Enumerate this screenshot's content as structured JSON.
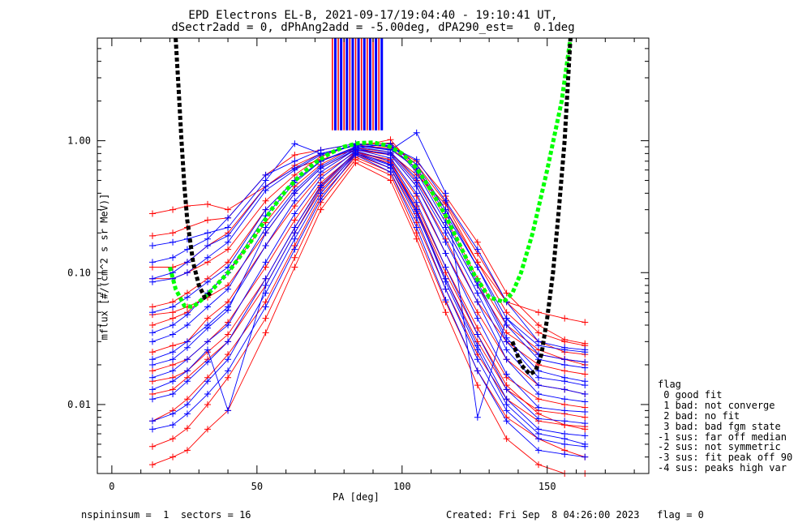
{
  "title": {
    "line1": "EPD Electrons EL-B, 2021-09-17/19:04:40 - 19:10:41 UT,",
    "line2": "dSectr2add = 0, dPhAng2add = -5.00deg, dPA290_est=   0.1deg"
  },
  "footer": {
    "left": "nspininsum =  1  sectors = 16",
    "right": "Created: Fri Sep  8 04:26:00 2023   flag = 0"
  },
  "legend": {
    "title": "flag",
    "items": [
      " 0 good fit",
      " 1 bad: not converge",
      " 2 bad: no fit",
      " 3 bad: bad fgm state",
      "-1 sus: far off median",
      "-2 sus: not symmetric",
      "-3 sus: fit peak off 90",
      "-4 sus: peaks high var"
    ]
  },
  "chart_data": {
    "type": "line",
    "xlabel": "PA [deg]",
    "ylabel": "mflux [#/(cm^2 s sr MeV)]",
    "xlim": [
      -5,
      185
    ],
    "ylim": [
      0.003,
      6.0
    ],
    "yscale": "log",
    "xticks": [
      0,
      50,
      100,
      150
    ],
    "xtick_labels": [
      "0",
      "50",
      "100",
      "150"
    ],
    "yticks": [
      0.01,
      0.1,
      1.0
    ],
    "ytick_labels": [
      "0.01",
      "0.10",
      "1.00"
    ],
    "colors": {
      "red_series": "#ff0000",
      "blue_series": "#0000ff",
      "fit_green": "#00ff00",
      "fit_black": "#000000"
    },
    "sectors_pa": [
      14,
      21,
      26,
      33,
      40,
      53,
      63,
      72,
      84,
      96,
      105,
      115,
      126,
      136,
      147,
      156,
      163
    ],
    "red_lines": [
      [
        0.28,
        0.3,
        0.32,
        0.33,
        0.3,
        0.45,
        0.62,
        0.72,
        0.85,
        0.8,
        0.55,
        0.33,
        0.12,
        0.06,
        0.05,
        0.045,
        0.042
      ],
      [
        0.19,
        0.2,
        0.22,
        0.25,
        0.26,
        0.55,
        0.78,
        0.85,
        0.95,
        0.9,
        0.7,
        0.38,
        0.17,
        0.07,
        0.04,
        0.031,
        0.029
      ],
      [
        0.11,
        0.11,
        0.12,
        0.16,
        0.2,
        0.45,
        0.65,
        0.8,
        0.92,
        0.88,
        0.62,
        0.3,
        0.12,
        0.05,
        0.03,
        0.025,
        0.024
      ],
      [
        0.055,
        0.06,
        0.07,
        0.09,
        0.12,
        0.3,
        0.5,
        0.7,
        0.88,
        0.82,
        0.5,
        0.22,
        0.08,
        0.035,
        0.024,
        0.022,
        0.021
      ],
      [
        0.048,
        0.05,
        0.055,
        0.065,
        0.08,
        0.2,
        0.4,
        0.62,
        0.85,
        0.78,
        0.45,
        0.18,
        0.06,
        0.03,
        0.02,
        0.018,
        0.017
      ],
      [
        0.025,
        0.028,
        0.03,
        0.045,
        0.06,
        0.16,
        0.32,
        0.55,
        0.82,
        0.72,
        0.38,
        0.14,
        0.05,
        0.022,
        0.014,
        0.013,
        0.012
      ],
      [
        0.018,
        0.02,
        0.022,
        0.03,
        0.042,
        0.11,
        0.25,
        0.48,
        0.8,
        0.68,
        0.32,
        0.11,
        0.038,
        0.016,
        0.011,
        0.01,
        0.0095
      ],
      [
        0.012,
        0.013,
        0.016,
        0.022,
        0.03,
        0.08,
        0.2,
        0.42,
        0.78,
        0.62,
        0.28,
        0.09,
        0.03,
        0.013,
        0.009,
        0.0085,
        0.008
      ],
      [
        0.0075,
        0.009,
        0.011,
        0.016,
        0.024,
        0.06,
        0.16,
        0.38,
        0.75,
        0.58,
        0.24,
        0.075,
        0.024,
        0.011,
        0.0075,
        0.007,
        0.0068
      ],
      [
        0.0048,
        0.0055,
        0.0066,
        0.01,
        0.016,
        0.045,
        0.13,
        0.34,
        0.72,
        0.55,
        0.2,
        0.06,
        0.018,
        0.008,
        0.0055,
        0.0045,
        0.004
      ],
      [
        0.04,
        0.045,
        0.05,
        0.07,
        0.1,
        0.24,
        0.45,
        0.66,
        0.9,
        1.02,
        0.6,
        0.26,
        0.09,
        0.04,
        0.026,
        0.022,
        0.02
      ],
      [
        0.09,
        0.09,
        0.1,
        0.12,
        0.15,
        0.35,
        0.55,
        0.76,
        0.94,
        0.96,
        0.66,
        0.34,
        0.14,
        0.06,
        0.035,
        0.03,
        0.028
      ],
      [
        0.015,
        0.016,
        0.018,
        0.025,
        0.034,
        0.09,
        0.22,
        0.45,
        0.82,
        0.7,
        0.3,
        0.1,
        0.034,
        0.014,
        0.0085,
        0.007,
        0.0065
      ],
      [
        0.0035,
        0.004,
        0.0045,
        0.0065,
        0.009,
        0.035,
        0.11,
        0.3,
        0.68,
        0.5,
        0.18,
        0.05,
        0.014,
        0.0055,
        0.0035,
        0.003,
        0.003
      ]
    ],
    "blue_lines": [
      [
        0.16,
        0.17,
        0.18,
        0.2,
        0.22,
        0.5,
        0.95,
        0.8,
        0.92,
        0.85,
        1.15,
        0.4,
        0.008,
        0.045,
        0.028,
        0.026,
        0.025
      ],
      [
        0.12,
        0.13,
        0.15,
        0.18,
        0.26,
        0.55,
        0.7,
        0.85,
        0.95,
        0.9,
        0.72,
        0.35,
        0.15,
        0.06,
        0.03,
        0.027,
        0.026
      ],
      [
        0.085,
        0.09,
        0.1,
        0.13,
        0.17,
        0.42,
        0.6,
        0.78,
        0.92,
        0.86,
        0.62,
        0.28,
        0.11,
        0.04,
        0.022,
        0.02,
        0.019
      ],
      [
        0.05,
        0.055,
        0.065,
        0.085,
        0.11,
        0.3,
        0.5,
        0.7,
        0.9,
        0.82,
        0.52,
        0.22,
        0.08,
        0.03,
        0.016,
        0.015,
        0.014
      ],
      [
        0.03,
        0.034,
        0.04,
        0.055,
        0.075,
        0.22,
        0.42,
        0.64,
        0.88,
        0.78,
        0.45,
        0.17,
        0.06,
        0.022,
        0.012,
        0.011,
        0.0105
      ],
      [
        0.022,
        0.025,
        0.03,
        0.04,
        0.055,
        0.16,
        0.35,
        0.58,
        0.86,
        0.74,
        0.4,
        0.14,
        0.045,
        0.017,
        0.0095,
        0.009,
        0.0088
      ],
      [
        0.016,
        0.018,
        0.022,
        0.03,
        0.04,
        0.12,
        0.28,
        0.52,
        0.84,
        0.7,
        0.34,
        0.11,
        0.034,
        0.013,
        0.0078,
        0.0075,
        0.0072
      ],
      [
        0.011,
        0.012,
        0.015,
        0.021,
        0.03,
        0.09,
        0.22,
        0.46,
        0.82,
        0.66,
        0.3,
        0.09,
        0.028,
        0.011,
        0.0065,
        0.006,
        0.0058
      ],
      [
        0.0075,
        0.0085,
        0.01,
        0.015,
        0.022,
        0.07,
        0.18,
        0.4,
        0.8,
        0.62,
        0.26,
        0.075,
        0.022,
        0.009,
        0.0055,
        0.005,
        0.0048
      ],
      [
        0.0065,
        0.007,
        0.0085,
        0.012,
        0.018,
        0.055,
        0.15,
        0.36,
        0.78,
        0.58,
        0.22,
        0.062,
        0.018,
        0.0075,
        0.0045,
        0.0042,
        0.004
      ],
      [
        0.035,
        0.04,
        0.048,
        0.07,
        0.1,
        0.27,
        0.48,
        0.7,
        0.88,
        0.95,
        0.58,
        0.24,
        0.085,
        0.032,
        0.018,
        0.016,
        0.015
      ],
      [
        0.02,
        0.022,
        0.027,
        0.038,
        0.052,
        0.2,
        0.4,
        0.62,
        0.86,
        0.8,
        0.48,
        0.2,
        0.07,
        0.026,
        0.014,
        0.013,
        0.012
      ],
      [
        0.013,
        0.015,
        0.018,
        0.026,
        0.009,
        0.08,
        0.2,
        0.44,
        0.8,
        0.65,
        0.29,
        0.085,
        0.026,
        0.01,
        0.006,
        0.0055,
        0.005
      ],
      [
        0.09,
        0.1,
        0.12,
        0.16,
        0.19,
        0.45,
        0.62,
        0.8,
        0.93,
        0.92,
        0.66,
        0.3,
        0.11,
        0.045,
        0.024,
        0.022,
        0.021
      ]
    ],
    "green_fit": {
      "x": [
        20,
        22,
        25,
        28,
        32,
        36,
        40,
        45,
        50,
        55,
        60,
        65,
        70,
        75,
        80,
        85,
        90,
        95,
        100,
        105,
        110,
        115,
        120,
        125,
        130,
        135,
        138,
        141,
        145,
        150,
        155,
        158
      ],
      "y": [
        0.11,
        0.075,
        0.056,
        0.055,
        0.065,
        0.08,
        0.1,
        0.14,
        0.2,
        0.3,
        0.42,
        0.55,
        0.68,
        0.8,
        0.9,
        0.96,
        0.97,
        0.92,
        0.8,
        0.62,
        0.42,
        0.27,
        0.16,
        0.095,
        0.065,
        0.06,
        0.07,
        0.1,
        0.2,
        0.6,
        2.0,
        6.0
      ]
    },
    "black_fit": {
      "x": [
        22,
        23,
        24,
        25,
        26,
        28,
        30,
        32,
        34,
        138,
        141,
        144,
        146,
        148,
        150,
        152,
        154,
        156,
        158
      ],
      "y": [
        6.0,
        2.5,
        1.0,
        0.45,
        0.25,
        0.12,
        0.08,
        0.065,
        0.07,
        0.03,
        0.02,
        0.017,
        0.018,
        0.024,
        0.045,
        0.1,
        0.3,
        1.0,
        6.0
      ]
    },
    "sector_marks_red": [
      76,
      78,
      80,
      82,
      84,
      86,
      88,
      90,
      92
    ],
    "sector_marks_blue": [
      77,
      79,
      81,
      83,
      85,
      87,
      89,
      91,
      93
    ]
  }
}
